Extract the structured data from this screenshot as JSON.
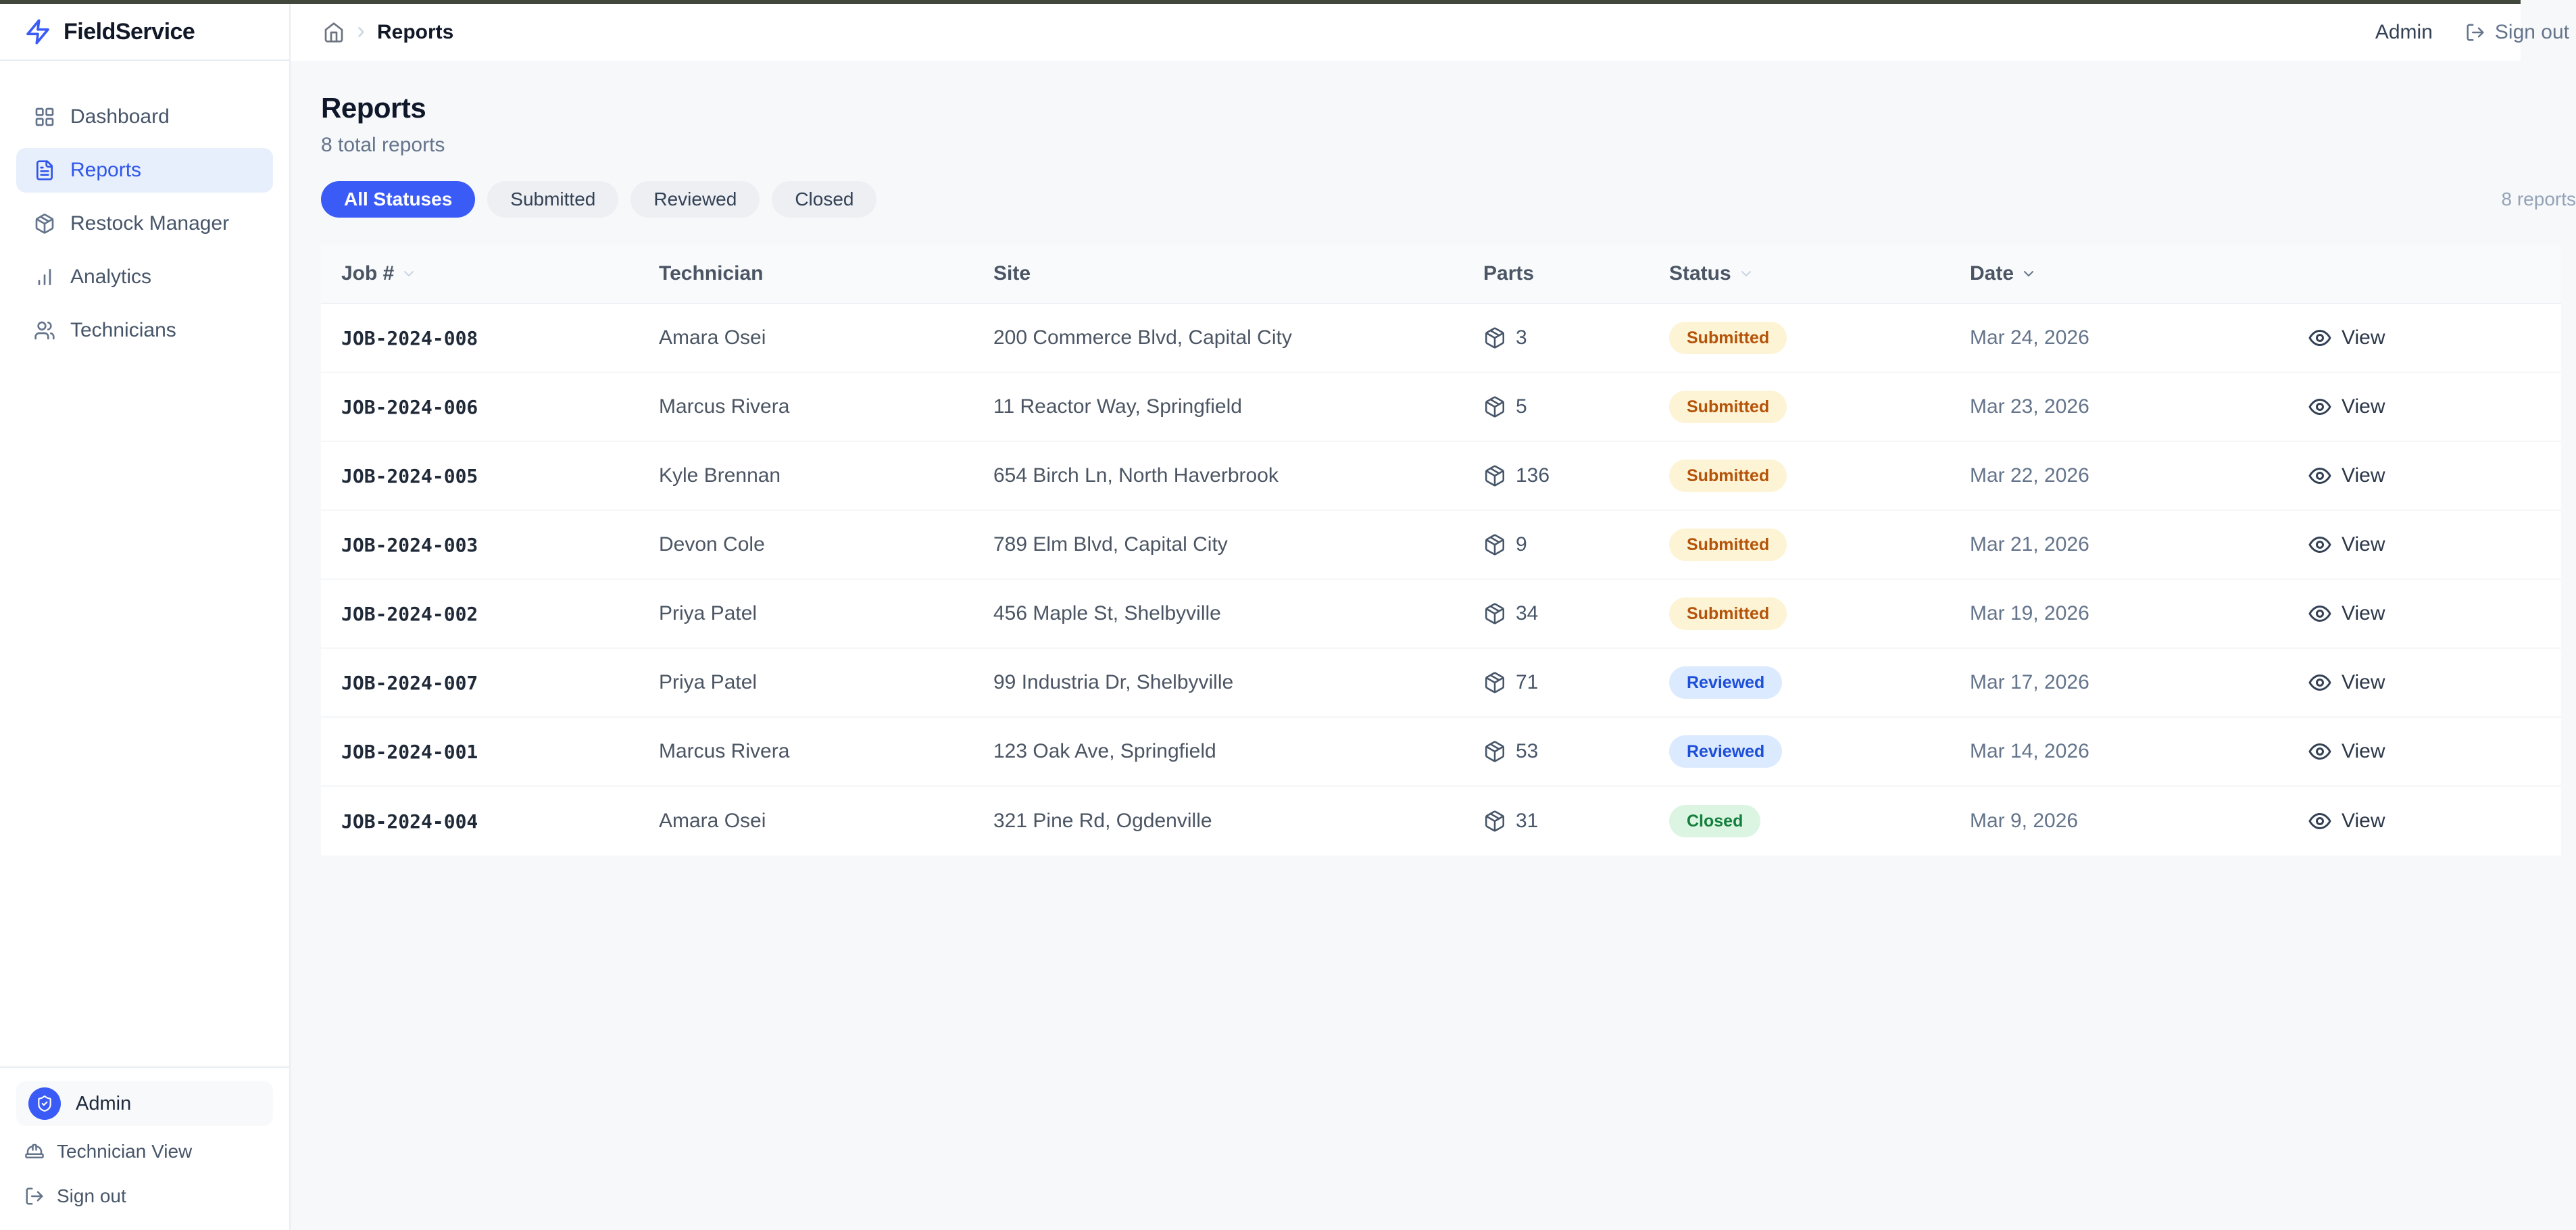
{
  "chrome": {
    "top_strip_color": "#41483b"
  },
  "brand": {
    "name": "FieldService",
    "accent_color": "#3b5bf6",
    "logo_icon": "zap-icon"
  },
  "sidebar": {
    "items": [
      {
        "label": "Dashboard",
        "icon": "layout-grid-icon",
        "active": false
      },
      {
        "label": "Reports",
        "icon": "file-text-icon",
        "active": true
      },
      {
        "label": "Restock Manager",
        "icon": "package-icon",
        "active": false
      },
      {
        "label": "Analytics",
        "icon": "bar-chart-icon",
        "active": false
      },
      {
        "label": "Technicians",
        "icon": "users-icon",
        "active": false
      }
    ],
    "footer": {
      "user": "Admin",
      "avatar_icon": "shield-check-icon",
      "technician_view_label": "Technician View",
      "technician_view_icon": "hard-hat-icon",
      "sign_out_label": "Sign out",
      "sign_out_icon": "log-out-icon"
    }
  },
  "topbar": {
    "breadcrumb": {
      "home_icon": "home-icon",
      "separator": "›",
      "current": "Reports"
    },
    "user_label": "Admin",
    "sign_out_label": "Sign out",
    "sign_out_icon": "log-out-icon"
  },
  "page": {
    "title": "Reports",
    "subtitle": "8 total reports",
    "filters": [
      {
        "label": "All Statuses",
        "active": true
      },
      {
        "label": "Submitted",
        "active": false
      },
      {
        "label": "Reviewed",
        "active": false
      },
      {
        "label": "Closed",
        "active": false
      }
    ],
    "result_count": "8 reports"
  },
  "table": {
    "columns": [
      {
        "label": "Job #",
        "sort": "light"
      },
      {
        "label": "Technician",
        "sort": null
      },
      {
        "label": "Site",
        "sort": null
      },
      {
        "label": "Parts",
        "sort": null
      },
      {
        "label": "Status",
        "sort": "light"
      },
      {
        "label": "Date",
        "sort": "dark"
      },
      {
        "label": "",
        "sort": null
      }
    ],
    "parts_icon": "package-icon",
    "action": {
      "label": "View",
      "icon": "eye-icon"
    },
    "rows": [
      {
        "job": "JOB-2024-008",
        "technician": "Amara Osei",
        "site": "200 Commerce Blvd, Capital City",
        "parts": "3",
        "status": "Submitted",
        "date": "Mar 24, 2026"
      },
      {
        "job": "JOB-2024-006",
        "technician": "Marcus Rivera",
        "site": "11 Reactor Way, Springfield",
        "parts": "5",
        "status": "Submitted",
        "date": "Mar 23, 2026"
      },
      {
        "job": "JOB-2024-005",
        "technician": "Kyle Brennan",
        "site": "654 Birch Ln, North Haverbrook",
        "parts": "136",
        "status": "Submitted",
        "date": "Mar 22, 2026"
      },
      {
        "job": "JOB-2024-003",
        "technician": "Devon Cole",
        "site": "789 Elm Blvd, Capital City",
        "parts": "9",
        "status": "Submitted",
        "date": "Mar 21, 2026"
      },
      {
        "job": "JOB-2024-002",
        "technician": "Priya Patel",
        "site": "456 Maple St, Shelbyville",
        "parts": "34",
        "status": "Submitted",
        "date": "Mar 19, 2026"
      },
      {
        "job": "JOB-2024-007",
        "technician": "Priya Patel",
        "site": "99 Industria Dr, Shelbyville",
        "parts": "71",
        "status": "Reviewed",
        "date": "Mar 17, 2026"
      },
      {
        "job": "JOB-2024-001",
        "technician": "Marcus Rivera",
        "site": "123 Oak Ave, Springfield",
        "parts": "53",
        "status": "Reviewed",
        "date": "Mar 14, 2026"
      },
      {
        "job": "JOB-2024-004",
        "technician": "Amara Osei",
        "site": "321 Pine Rd, Ogdenville",
        "parts": "31",
        "status": "Closed",
        "date": "Mar 9, 2026"
      }
    ]
  },
  "status_styles": {
    "Submitted": {
      "bg": "#fdf4d5",
      "text": "#b45309"
    },
    "Reviewed": {
      "bg": "#dbeafe",
      "text": "#1d4ed8"
    },
    "Closed": {
      "bg": "#dcf5e3",
      "text": "#15803d"
    }
  }
}
